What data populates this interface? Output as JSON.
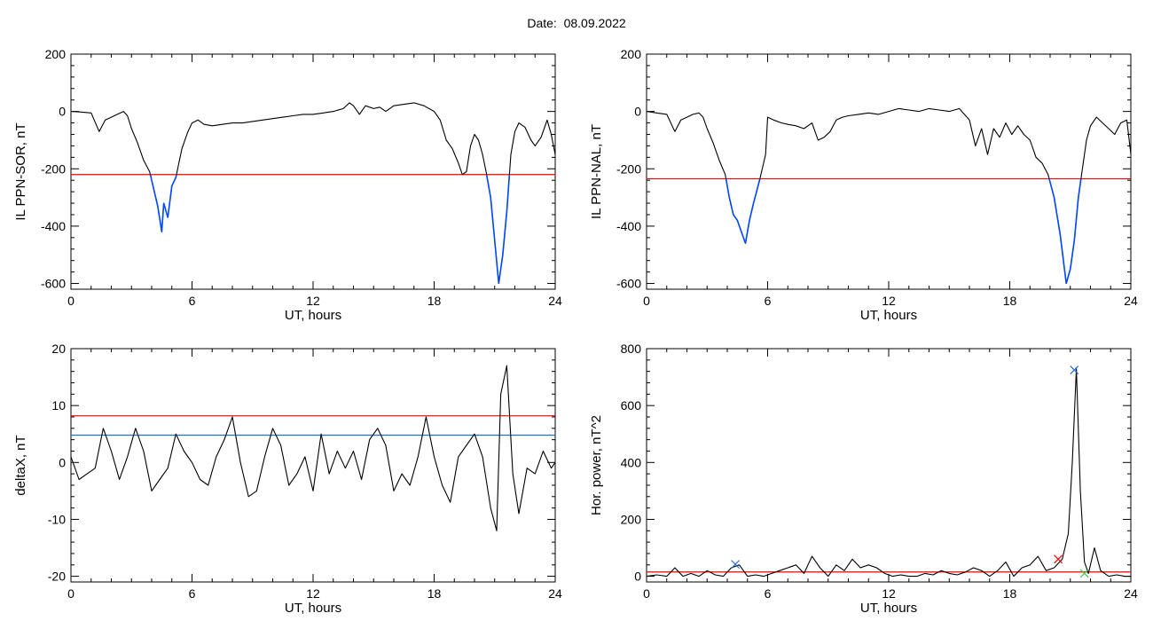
{
  "header": {
    "date_label": "Date:",
    "date_value": "08.09.2022"
  },
  "colors": {
    "axis": "#000000",
    "trace": "#000000",
    "red_threshold": "#ff0000",
    "blue_threshold": "#1f6fd0",
    "blue_highlight": "#0047ff",
    "green_marker": "#33cc33"
  },
  "chart_data": [
    {
      "type": "line",
      "ylabel": "IL PPN-SOR, nT",
      "xlabel": "UT, hours",
      "xlim": [
        0,
        24
      ],
      "ylim": [
        -620,
        200
      ],
      "xticks": [
        0,
        6,
        12,
        18,
        24
      ],
      "yticks": [
        200,
        0,
        -200,
        -400,
        -600
      ],
      "series": [
        {
          "x": [
            0,
            0.5,
            1,
            1.4,
            1.7,
            2,
            2.3,
            2.6,
            2.8,
            3,
            3.3,
            3.6,
            3.9,
            4.1,
            4.3,
            4.5,
            4.6,
            4.8,
            5,
            5.2,
            5.5,
            5.8,
            6,
            6.3,
            6.6,
            7,
            7.5,
            8,
            8.5,
            9,
            9.5,
            10,
            10.5,
            11,
            11.5,
            12,
            12.5,
            13,
            13.5,
            13.8,
            14,
            14.3,
            14.6,
            15,
            15.3,
            15.6,
            16,
            16.5,
            17,
            17.5,
            18,
            18.3,
            18.6,
            18.9,
            19.2,
            19.4,
            19.6,
            19.8,
            20,
            20.2,
            20.4,
            20.6,
            20.8,
            21,
            21.2,
            21.4,
            21.6,
            21.8,
            22,
            22.2,
            22.5,
            22.8,
            23,
            23.3,
            23.6,
            23.8,
            24
          ],
          "y": [
            0,
            -2,
            -5,
            -70,
            -30,
            -20,
            -10,
            0,
            -15,
            -60,
            -110,
            -170,
            -210,
            -270,
            -330,
            -420,
            -320,
            -370,
            -260,
            -230,
            -130,
            -70,
            -40,
            -30,
            -45,
            -50,
            -45,
            -40,
            -40,
            -35,
            -30,
            -25,
            -20,
            -15,
            -10,
            -10,
            -5,
            0,
            10,
            30,
            20,
            -10,
            20,
            10,
            15,
            0,
            20,
            25,
            30,
            20,
            0,
            -30,
            -100,
            -130,
            -180,
            -220,
            -210,
            -120,
            -80,
            -100,
            -150,
            -220,
            -300,
            -450,
            -600,
            -500,
            -350,
            -150,
            -70,
            -40,
            -55,
            -100,
            -120,
            -90,
            -30,
            -80,
            -150
          ]
        }
      ],
      "thresholds": [
        {
          "y": -220,
          "color": "red"
        }
      ],
      "highlight_below": -220
    },
    {
      "type": "line",
      "ylabel": "IL PPN-NAL, nT",
      "xlabel": "UT, hours",
      "xlim": [
        0,
        24
      ],
      "ylim": [
        -620,
        200
      ],
      "xticks": [
        0,
        6,
        12,
        18,
        24
      ],
      "yticks": [
        200,
        0,
        -200,
        -400,
        -600
      ],
      "series": [
        {
          "x": [
            0,
            0.5,
            1,
            1.4,
            1.7,
            2,
            2.3,
            2.6,
            2.8,
            3,
            3.3,
            3.6,
            3.9,
            4.1,
            4.3,
            4.5,
            4.7,
            4.9,
            5.1,
            5.3,
            5.6,
            5.9,
            6,
            6.3,
            6.7,
            7,
            7.4,
            7.8,
            8.2,
            8.5,
            8.8,
            9.1,
            9.4,
            9.7,
            10,
            10.5,
            11,
            11.5,
            12,
            12.5,
            13,
            13.5,
            14,
            14.5,
            15,
            15.5,
            16,
            16.3,
            16.6,
            16.9,
            17.2,
            17.5,
            17.8,
            18.1,
            18.4,
            18.7,
            19,
            19.3,
            19.6,
            19.9,
            20.2,
            20.5,
            20.8,
            21,
            21.2,
            21.4,
            21.6,
            21.8,
            22,
            22.3,
            22.6,
            22.9,
            23.2,
            23.5,
            23.8,
            24
          ],
          "y": [
            0,
            -5,
            -10,
            -70,
            -30,
            -20,
            -10,
            -5,
            -20,
            -60,
            -110,
            -170,
            -220,
            -300,
            -360,
            -380,
            -420,
            -460,
            -380,
            -320,
            -240,
            -150,
            -20,
            -30,
            -40,
            -45,
            -50,
            -60,
            -40,
            -100,
            -90,
            -70,
            -30,
            -20,
            -15,
            -10,
            -5,
            -10,
            0,
            10,
            5,
            0,
            10,
            5,
            0,
            10,
            -30,
            -120,
            -60,
            -150,
            -60,
            -90,
            -40,
            -80,
            -50,
            -80,
            -100,
            -160,
            -180,
            -220,
            -300,
            -430,
            -600,
            -550,
            -450,
            -300,
            -200,
            -100,
            -50,
            -20,
            -40,
            -60,
            -80,
            -40,
            -30,
            -150
          ]
        }
      ],
      "thresholds": [
        {
          "y": -235,
          "color": "red"
        }
      ],
      "highlight_below": -235
    },
    {
      "type": "line",
      "ylabel": "deltaX, nT",
      "xlabel": "UT, hours",
      "xlim": [
        0,
        24
      ],
      "ylim": [
        -21,
        20
      ],
      "xticks": [
        0,
        6,
        12,
        18,
        24
      ],
      "yticks": [
        20,
        10,
        0,
        -10,
        -20
      ],
      "series": [
        {
          "x": [
            0,
            0.4,
            0.8,
            1.2,
            1.6,
            2,
            2.4,
            2.8,
            3.2,
            3.6,
            4,
            4.4,
            4.8,
            5.2,
            5.6,
            6,
            6.4,
            6.8,
            7.2,
            7.6,
            8,
            8.4,
            8.8,
            9.2,
            9.6,
            10,
            10.4,
            10.8,
            11.2,
            11.6,
            12,
            12.4,
            12.8,
            13.2,
            13.6,
            14,
            14.4,
            14.8,
            15.2,
            15.6,
            16,
            16.4,
            16.8,
            17.2,
            17.6,
            18,
            18.4,
            18.8,
            19.2,
            19.6,
            20,
            20.4,
            20.8,
            21.1,
            21.3,
            21.6,
            21.9,
            22.2,
            22.6,
            23,
            23.4,
            23.8,
            24
          ],
          "y": [
            1,
            -3,
            -2,
            -1,
            6,
            2,
            -3,
            1,
            6,
            2,
            -5,
            -3,
            -1,
            5,
            2,
            0,
            -3,
            -4,
            1,
            4,
            8,
            0,
            -6,
            -5,
            1,
            6,
            3,
            -4,
            -2,
            1,
            -5,
            5,
            -2,
            2,
            -1,
            2,
            -3,
            4,
            6,
            3,
            -5,
            -2,
            -4,
            1,
            8,
            1,
            -4,
            -7,
            1,
            3,
            5,
            1,
            -8,
            -12,
            12,
            17,
            -2,
            -9,
            -1,
            -2,
            2,
            -1,
            0
          ]
        }
      ],
      "thresholds": [
        {
          "y": 8.2,
          "color": "red"
        },
        {
          "y": 4.8,
          "color": "blue"
        }
      ]
    },
    {
      "type": "line",
      "ylabel": "Hor. power, nT^2",
      "xlabel": "UT, hours",
      "xlim": [
        0,
        24
      ],
      "ylim": [
        -20,
        800
      ],
      "xticks": [
        0,
        6,
        12,
        18,
        24
      ],
      "yticks": [
        800,
        600,
        400,
        200,
        0
      ],
      "series": [
        {
          "x": [
            0,
            0.5,
            1,
            1.4,
            1.8,
            2.2,
            2.6,
            3,
            3.4,
            3.8,
            4.2,
            4.6,
            5,
            5.4,
            5.8,
            6.2,
            6.6,
            7,
            7.4,
            7.8,
            8.2,
            8.6,
            9,
            9.4,
            9.8,
            10.2,
            10.6,
            11,
            11.4,
            11.8,
            12.2,
            12.6,
            13,
            13.4,
            13.8,
            14.2,
            14.6,
            15,
            15.4,
            15.8,
            16.2,
            16.6,
            17,
            17.4,
            17.8,
            18.2,
            18.6,
            19,
            19.4,
            19.8,
            20.2,
            20.6,
            20.9,
            21.1,
            21.3,
            21.5,
            21.7,
            21.9,
            22.2,
            22.5,
            22.9,
            23.3,
            23.7,
            24
          ],
          "y": [
            0,
            5,
            0,
            30,
            0,
            10,
            0,
            20,
            5,
            0,
            30,
            40,
            0,
            5,
            0,
            10,
            20,
            30,
            40,
            10,
            70,
            30,
            0,
            40,
            20,
            60,
            30,
            40,
            30,
            10,
            0,
            5,
            0,
            0,
            10,
            5,
            20,
            10,
            5,
            15,
            30,
            20,
            0,
            20,
            50,
            0,
            30,
            40,
            70,
            20,
            30,
            60,
            150,
            400,
            730,
            300,
            50,
            10,
            100,
            20,
            0,
            5,
            0,
            0
          ]
        }
      ],
      "thresholds": [
        {
          "y": 15,
          "color": "red"
        }
      ],
      "markers": [
        {
          "x": 4.4,
          "y": 42,
          "color": "blue"
        },
        {
          "x": 21.2,
          "y": 725,
          "color": "blue"
        },
        {
          "x": 20.4,
          "y": 60,
          "color": "red"
        },
        {
          "x": 21.7,
          "y": 10,
          "color": "green"
        }
      ]
    }
  ]
}
